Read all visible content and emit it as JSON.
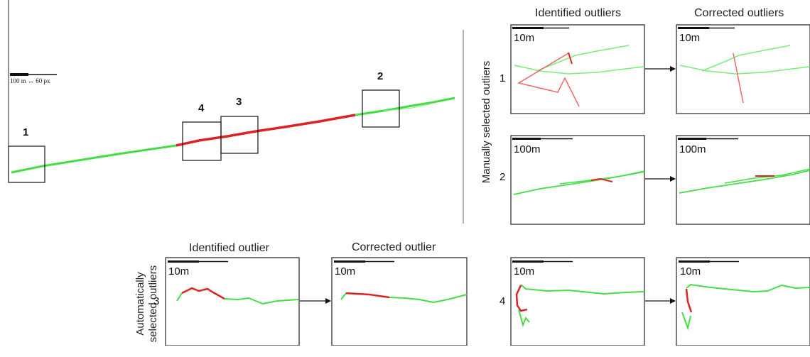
{
  "overview": {
    "scale_label": "100 m ↔ 60 px",
    "box_labels": [
      "1",
      "2",
      "3",
      "4"
    ]
  },
  "manual": {
    "group_label": "Manually selected outliers",
    "col_left": "Identified outliers",
    "col_right": "Corrected outliers",
    "rows": [
      {
        "id": "1",
        "scale": "10m"
      },
      {
        "id": "2",
        "scale": "100m"
      }
    ]
  },
  "automatic": {
    "group_label_line1": "Automatically",
    "group_label_line2": "selected outliers",
    "col_left": "Identified outlier",
    "col_right": "Corrected outlier",
    "rows": [
      {
        "id": "3",
        "scale": "10m"
      },
      {
        "id": "4",
        "scale": "10m"
      }
    ]
  },
  "colors": {
    "inlier": "#44dd44",
    "outlier": "#dd2222",
    "box": "#111111"
  }
}
